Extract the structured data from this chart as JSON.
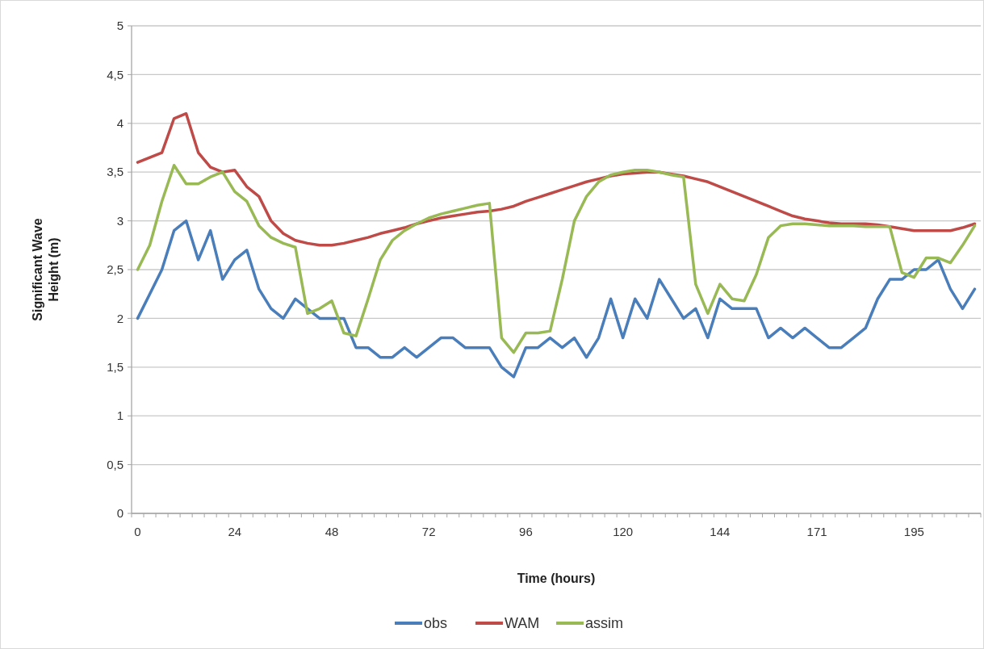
{
  "chart_data": {
    "type": "line",
    "xlabel": "Time (hours)",
    "ylabel": "Significant Wave Height (m)",
    "categories": [
      "0",
      null,
      null,
      null,
      null,
      null,
      null,
      null,
      "24",
      null,
      null,
      null,
      null,
      null,
      null,
      null,
      "48",
      null,
      null,
      null,
      null,
      null,
      null,
      null,
      "72",
      null,
      null,
      null,
      null,
      null,
      null,
      null,
      "96",
      null,
      null,
      null,
      null,
      null,
      null,
      null,
      "120",
      null,
      null,
      null,
      null,
      null,
      null,
      null,
      "144",
      null,
      null,
      null,
      null,
      null,
      null,
      null,
      "171",
      null,
      null,
      null,
      null,
      null,
      null,
      null,
      "195",
      null,
      null,
      null,
      null,
      null
    ],
    "series": [
      {
        "name": "obs",
        "color": "#4a7ebb",
        "values": [
          2.0,
          2.25,
          2.5,
          2.9,
          3.0,
          2.6,
          2.9,
          2.4,
          2.6,
          2.7,
          2.3,
          2.1,
          2.0,
          2.2,
          2.1,
          2.0,
          2.0,
          2.0,
          1.7,
          1.7,
          1.6,
          1.6,
          1.7,
          1.6,
          1.7,
          1.8,
          1.8,
          1.7,
          1.7,
          1.7,
          1.5,
          1.4,
          1.7,
          1.7,
          1.8,
          1.7,
          1.8,
          1.6,
          1.8,
          2.2,
          1.8,
          2.2,
          2.0,
          2.4,
          2.2,
          2.0,
          2.1,
          1.8,
          2.2,
          2.1,
          2.1,
          2.1,
          1.8,
          1.9,
          1.8,
          1.9,
          1.8,
          1.7,
          1.7,
          1.8,
          1.9,
          2.2,
          2.4,
          2.4,
          2.5,
          2.5,
          2.6,
          2.3,
          2.1,
          2.3
        ]
      },
      {
        "name": "WAM",
        "color": "#be4b48",
        "values": [
          3.6,
          3.65,
          3.7,
          4.05,
          4.1,
          3.7,
          3.55,
          3.5,
          3.52,
          3.35,
          3.25,
          3.0,
          2.87,
          2.8,
          2.77,
          2.75,
          2.75,
          2.77,
          2.8,
          2.83,
          2.87,
          2.9,
          2.93,
          2.97,
          3.0,
          3.03,
          3.05,
          3.07,
          3.09,
          3.1,
          3.12,
          3.15,
          3.2,
          3.24,
          3.28,
          3.32,
          3.36,
          3.4,
          3.43,
          3.46,
          3.48,
          3.49,
          3.5,
          3.5,
          3.48,
          3.46,
          3.43,
          3.4,
          3.35,
          3.3,
          3.25,
          3.2,
          3.15,
          3.1,
          3.05,
          3.02,
          3.0,
          2.98,
          2.97,
          2.97,
          2.97,
          2.96,
          2.94,
          2.92,
          2.9,
          2.9,
          2.9,
          2.9,
          2.93,
          2.97
        ]
      },
      {
        "name": "assim",
        "color": "#98b954",
        "values": [
          2.5,
          2.75,
          3.2,
          3.57,
          3.38,
          3.38,
          3.45,
          3.5,
          3.3,
          3.2,
          2.95,
          2.83,
          2.77,
          2.73,
          2.05,
          2.1,
          2.18,
          1.85,
          1.82,
          2.2,
          2.6,
          2.8,
          2.9,
          2.97,
          3.03,
          3.07,
          3.1,
          3.13,
          3.16,
          3.18,
          1.8,
          1.65,
          1.85,
          1.85,
          1.87,
          2.4,
          3.0,
          3.25,
          3.4,
          3.47,
          3.5,
          3.52,
          3.52,
          3.5,
          3.47,
          3.45,
          2.35,
          2.05,
          2.35,
          2.2,
          2.18,
          2.45,
          2.83,
          2.95,
          2.97,
          2.97,
          2.96,
          2.95,
          2.95,
          2.95,
          2.94,
          2.94,
          2.94,
          2.47,
          2.42,
          2.62,
          2.62,
          2.57,
          2.75,
          2.95
        ]
      }
    ],
    "ylim": [
      0,
      5
    ],
    "yticks": [
      0,
      {
        "value": 0.5,
        "label": "0,5"
      },
      1,
      {
        "value": 1.5,
        "label": "1,5"
      },
      2,
      {
        "value": 2.5,
        "label": "2,5"
      },
      3,
      {
        "value": 3.5,
        "label": "3,5"
      },
      4,
      {
        "value": 4.5,
        "label": "4,5"
      },
      5
    ],
    "grid": "y",
    "legend": "bottom",
    "marker": "none",
    "line_style": "solid"
  }
}
